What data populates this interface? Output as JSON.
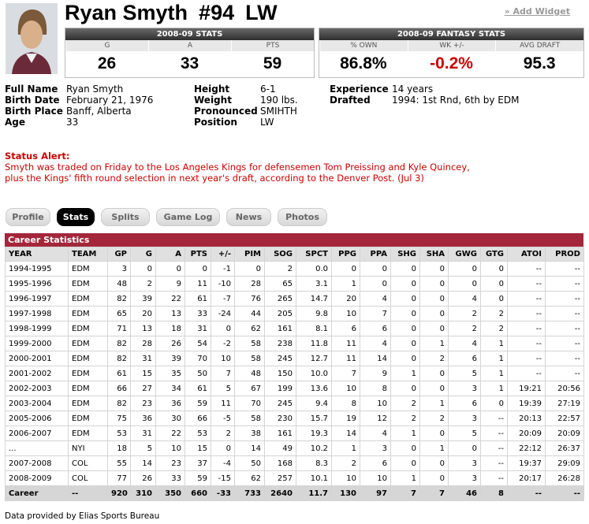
{
  "header": {
    "name": "Ryan Smyth",
    "number": "#94",
    "position": "LW",
    "add_widget": "» Add Widget"
  },
  "stats_box": {
    "title": "2008-09 STATS",
    "columns": [
      "G",
      "A",
      "PTS"
    ],
    "values": [
      "26",
      "33",
      "59"
    ]
  },
  "fantasy_box": {
    "title": "2008-09 FANTASY STATS",
    "columns": [
      "% OWN",
      "WK +/-",
      "AVG DRAFT"
    ],
    "values": [
      "86.8%",
      "-0.2%",
      "95.3"
    ]
  },
  "bio": [
    [
      {
        "label": "Full Name",
        "value": "Ryan Smyth"
      },
      {
        "label": "Birth Date",
        "value": "February 21, 1976"
      },
      {
        "label": "Birth Place",
        "value": "Banff, Alberta"
      },
      {
        "label": "Age",
        "value": "33"
      }
    ],
    [
      {
        "label": "Height",
        "value": "6-1"
      },
      {
        "label": "Weight",
        "value": "190 lbs."
      },
      {
        "label": "Pronounced",
        "value": "SMIHTH"
      },
      {
        "label": "Position",
        "value": "LW"
      }
    ],
    [
      {
        "label": "Experience",
        "value": "14 years"
      },
      {
        "label": "Drafted",
        "value": "1994: 1st Rnd, 6th by EDM"
      }
    ]
  ],
  "status_alert": {
    "title": "Status Alert:",
    "lines": [
      "Smyth was traded on Friday to the Los Angeles Kings for defensemen Tom Preissing and Kyle Quincey,",
      "plus the Kings' fifth round selection in next year's draft, according to the Denver Post. (Jul 3)"
    ]
  },
  "tabs": [
    "Profile",
    "Stats",
    "Splits",
    "Game Log",
    "News",
    "Photos"
  ],
  "table": {
    "title": "Career Statistics",
    "columns": [
      "YEAR",
      "TEAM",
      "GP",
      "G",
      "A",
      "PTS",
      "+/-",
      "PIM",
      "SOG",
      "SPCT",
      "PPG",
      "PPA",
      "SHG",
      "SHA",
      "GWG",
      "GTG",
      "ATOI",
      "PROD"
    ],
    "rows": [
      [
        "1994-1995",
        "EDM",
        "3",
        "0",
        "0",
        "0",
        "-1",
        "0",
        "2",
        "0.0",
        "0",
        "0",
        "0",
        "0",
        "0",
        "0",
        "--",
        "--"
      ],
      [
        "1995-1996",
        "EDM",
        "48",
        "2",
        "9",
        "11",
        "-10",
        "28",
        "65",
        "3.1",
        "1",
        "0",
        "0",
        "0",
        "0",
        "0",
        "--",
        "--"
      ],
      [
        "1996-1997",
        "EDM",
        "82",
        "39",
        "22",
        "61",
        "-7",
        "76",
        "265",
        "14.7",
        "20",
        "4",
        "0",
        "0",
        "4",
        "0",
        "--",
        "--"
      ],
      [
        "1997-1998",
        "EDM",
        "65",
        "20",
        "13",
        "33",
        "-24",
        "44",
        "205",
        "9.8",
        "10",
        "7",
        "0",
        "0",
        "2",
        "2",
        "--",
        "--"
      ],
      [
        "1998-1999",
        "EDM",
        "71",
        "13",
        "18",
        "31",
        "0",
        "62",
        "161",
        "8.1",
        "6",
        "6",
        "0",
        "0",
        "2",
        "2",
        "--",
        "--"
      ],
      [
        "1999-2000",
        "EDM",
        "82",
        "28",
        "26",
        "54",
        "-2",
        "58",
        "238",
        "11.8",
        "11",
        "4",
        "0",
        "1",
        "4",
        "1",
        "--",
        "--"
      ],
      [
        "2000-2001",
        "EDM",
        "82",
        "31",
        "39",
        "70",
        "10",
        "58",
        "245",
        "12.7",
        "11",
        "14",
        "0",
        "2",
        "6",
        "1",
        "--",
        "--"
      ],
      [
        "2001-2002",
        "EDM",
        "61",
        "15",
        "35",
        "50",
        "7",
        "48",
        "150",
        "10.0",
        "7",
        "9",
        "1",
        "0",
        "5",
        "1",
        "--",
        "--"
      ],
      [
        "2002-2003",
        "EDM",
        "66",
        "27",
        "34",
        "61",
        "5",
        "67",
        "199",
        "13.6",
        "10",
        "8",
        "0",
        "0",
        "3",
        "1",
        "19:21",
        "20:56"
      ],
      [
        "2003-2004",
        "EDM",
        "82",
        "23",
        "36",
        "59",
        "11",
        "70",
        "245",
        "9.4",
        "8",
        "10",
        "2",
        "1",
        "6",
        "0",
        "19:39",
        "27:19"
      ],
      [
        "2005-2006",
        "EDM",
        "75",
        "36",
        "30",
        "66",
        "-5",
        "58",
        "230",
        "15.7",
        "19",
        "12",
        "2",
        "2",
        "3",
        "--",
        "20:13",
        "22:57"
      ],
      [
        "2006-2007",
        "EDM",
        "53",
        "31",
        "22",
        "53",
        "2",
        "38",
        "161",
        "19.3",
        "14",
        "4",
        "1",
        "0",
        "5",
        "--",
        "20:09",
        "20:09"
      ],
      [
        "...",
        "NYI",
        "18",
        "5",
        "10",
        "15",
        "0",
        "14",
        "49",
        "10.2",
        "1",
        "3",
        "0",
        "1",
        "0",
        "--",
        "22:12",
        "26:37"
      ],
      [
        "2007-2008",
        "COL",
        "55",
        "14",
        "23",
        "37",
        "-4",
        "50",
        "168",
        "8.3",
        "2",
        "6",
        "0",
        "0",
        "3",
        "--",
        "19:37",
        "29:09"
      ],
      [
        "2008-2009",
        "COL",
        "77",
        "26",
        "33",
        "59",
        "-15",
        "62",
        "257",
        "10.1",
        "10",
        "10",
        "1",
        "0",
        "3",
        "--",
        "20:17",
        "26:28"
      ],
      [
        "Career",
        "--",
        "920",
        "310",
        "350",
        "660",
        "-33",
        "733",
        "2640",
        "11.7",
        "130",
        "97",
        "7",
        "7",
        "46",
        "8",
        "--",
        "--"
      ]
    ]
  },
  "footer": "Data provided by Elias Sports Bureau"
}
